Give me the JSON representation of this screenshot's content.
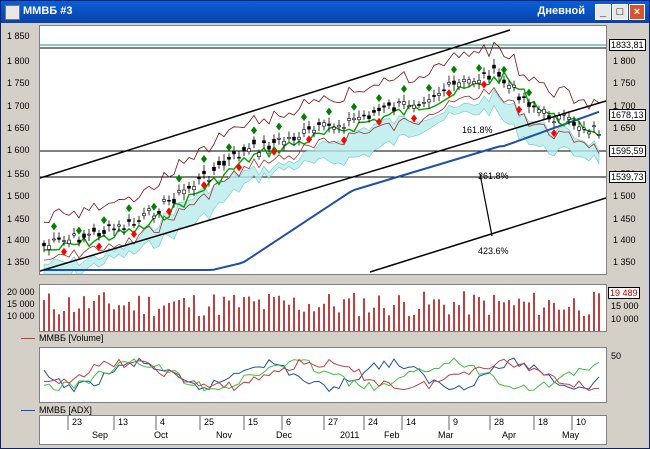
{
  "window": {
    "title": "ММВБ #3",
    "period": "Дневной",
    "buttons": [
      "_",
      "□",
      "×"
    ]
  },
  "price_axis": {
    "ticks": [
      "1 850",
      "1 800",
      "1 750",
      "1 700",
      "1 650",
      "1 600",
      "1 550",
      "1 500",
      "1 450",
      "1 400",
      "1 350"
    ],
    "right_ticks": [
      "1 800",
      "1 750",
      "1 700",
      "1 650",
      "1 550",
      "1 500",
      "1 450",
      "1 400",
      "1 350"
    ],
    "boxes": [
      "1833,81",
      "1678,13",
      "1595,59",
      "1539,73"
    ]
  },
  "fib_labels": [
    "161.8%",
    "261.8%",
    "423.6%"
  ],
  "volume_axis": {
    "ticks": [
      "20 000",
      "15 000",
      "10 000"
    ],
    "right_ticks": [
      "15 000",
      "10 000"
    ],
    "box": "19 489"
  },
  "volume_legend": "ММВБ [Volume]",
  "adx_axis": {
    "right_tick": "50"
  },
  "adx_legend": "ММВБ [ADX]",
  "date_axis": {
    "days": [
      "23",
      "13",
      "4",
      "25",
      "15",
      "6",
      "27",
      "24",
      "14",
      "9",
      "28",
      "18",
      "10"
    ],
    "months": [
      "Sep",
      "Oct",
      "Nov",
      "Dec",
      "2011",
      "Feb",
      "Mar",
      "Apr",
      "May"
    ]
  },
  "colors": {
    "up": "#008000",
    "down": "#ff0000",
    "ema": "#00a000",
    "bb": "#000000",
    "trend": "#000000",
    "ma_long": "#1f4fa8",
    "cloud": "#40c0c0",
    "volume": "#c04040"
  }
}
